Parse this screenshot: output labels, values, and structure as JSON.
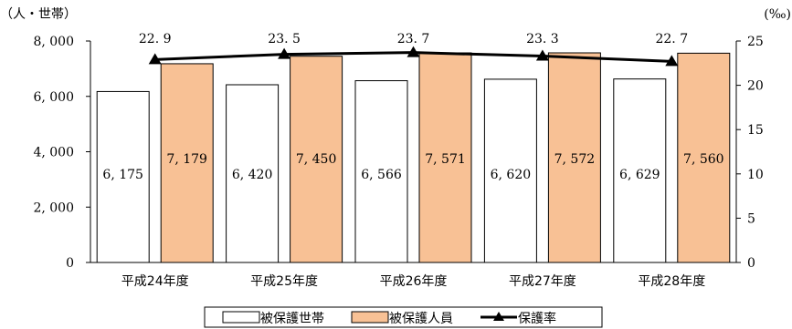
{
  "chart_data": {
    "type": "bar",
    "categories": [
      "平成24年度",
      "平成25年度",
      "平成26年度",
      "平成27年度",
      "平成28年度"
    ],
    "series": [
      {
        "name": "被保護世帯",
        "type": "bar",
        "axis": "left",
        "values": [
          6175,
          6420,
          6566,
          6620,
          6629
        ],
        "labels": [
          "6, 175",
          "6, 420",
          "6, 566",
          "6, 620",
          "6, 629"
        ],
        "fill": "#ffffff",
        "stroke": "#000000"
      },
      {
        "name": "被保護人員",
        "type": "bar",
        "axis": "left",
        "values": [
          7179,
          7450,
          7571,
          7572,
          7560
        ],
        "labels": [
          "7, 179",
          "7, 450",
          "7, 571",
          "7, 572",
          "7, 560"
        ],
        "fill": "#f8c195",
        "stroke": "#000000"
      },
      {
        "name": "保護率",
        "type": "line",
        "axis": "right",
        "marker": "triangle",
        "values": [
          22.9,
          23.5,
          23.7,
          23.3,
          22.7
        ],
        "labels": [
          "22. 9",
          "23. 5",
          "23. 7",
          "23. 3",
          "22. 7"
        ],
        "color": "#000000"
      }
    ],
    "left_axis": {
      "unit": "（人・世帯）",
      "min": 0,
      "max": 8000,
      "ticks": [
        0,
        2000,
        4000,
        6000,
        8000
      ],
      "tick_labels": [
        "0",
        "2, 000",
        "4, 000",
        "6, 000",
        "8, 000"
      ]
    },
    "right_axis": {
      "unit": "(‰)",
      "min": 0,
      "max": 25,
      "ticks": [
        0,
        5,
        10,
        15,
        20,
        25
      ],
      "tick_labels": [
        "0",
        "5",
        "10",
        "15",
        "20",
        "25"
      ]
    },
    "grid": false,
    "legend_position": "bottom"
  }
}
